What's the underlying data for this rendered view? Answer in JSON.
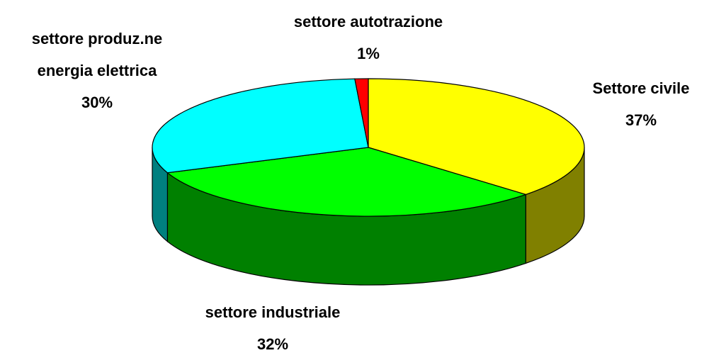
{
  "chart_data": {
    "type": "pie",
    "categories": [
      "Settore civile",
      "settore industriale",
      "settore produz.ne energia elettrica",
      "settore autotrazione"
    ],
    "values": [
      37,
      32,
      30,
      1
    ],
    "value_labels": [
      "37%",
      "32%",
      "30%",
      "1%"
    ],
    "colors": [
      "#ffff00",
      "#00ff00",
      "#00ffff",
      "#ff0000"
    ],
    "side_colors": [
      "#808000",
      "#008000",
      "#008080",
      "#800000"
    ]
  }
}
